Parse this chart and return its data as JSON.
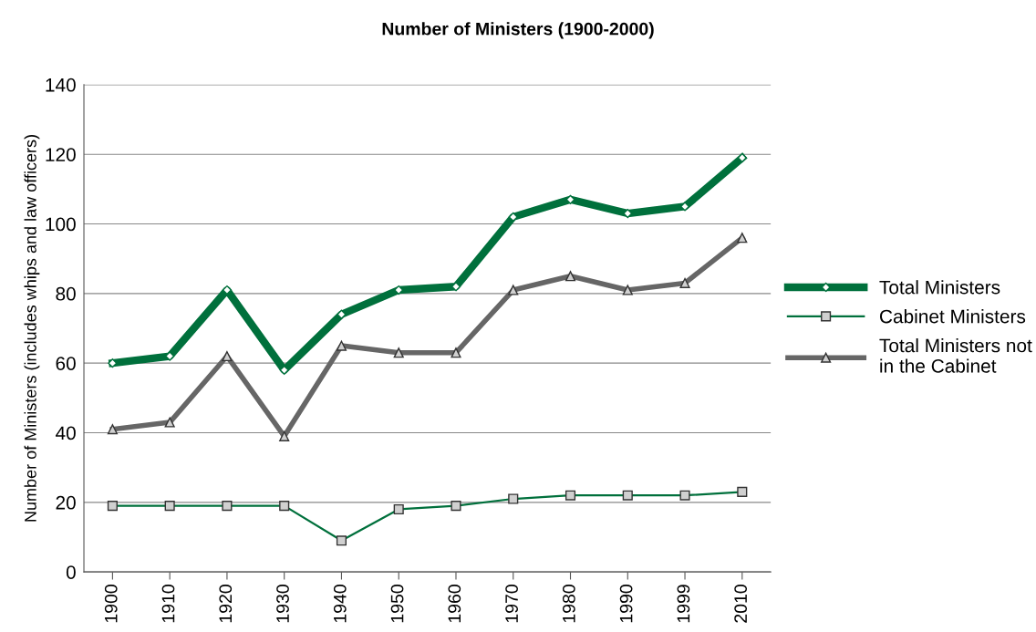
{
  "chart_data": {
    "type": "line",
    "title": "Number of Ministers (1900-2000)",
    "ylabel": "Number of Ministers (includes whips and law officers)",
    "categories": [
      "1900",
      "1910",
      "1920",
      "1930",
      "1940",
      "1950",
      "1960",
      "1970",
      "1980",
      "1990",
      "1999",
      "2010"
    ],
    "series": [
      {
        "name": "Total Ministers",
        "color": "#00703c",
        "marker": "diamond",
        "values": [
          60,
          62,
          81,
          58,
          74,
          81,
          82,
          102,
          107,
          103,
          105,
          119
        ]
      },
      {
        "name": "Cabinet Ministers",
        "color": "#00703c",
        "marker": "square",
        "values": [
          19,
          19,
          19,
          19,
          9,
          18,
          19,
          21,
          22,
          22,
          22,
          23
        ]
      },
      {
        "name": "Total Ministers not\nin the Cabinet",
        "color": "#666666",
        "marker": "triangle",
        "values": [
          41,
          43,
          62,
          39,
          65,
          63,
          63,
          81,
          85,
          81,
          83,
          96
        ]
      }
    ],
    "ylim": [
      0,
      140
    ],
    "yticks": [
      0,
      20,
      40,
      60,
      80,
      100,
      120,
      140
    ],
    "grid": "y",
    "legend": "right",
    "line_style": "solid"
  }
}
